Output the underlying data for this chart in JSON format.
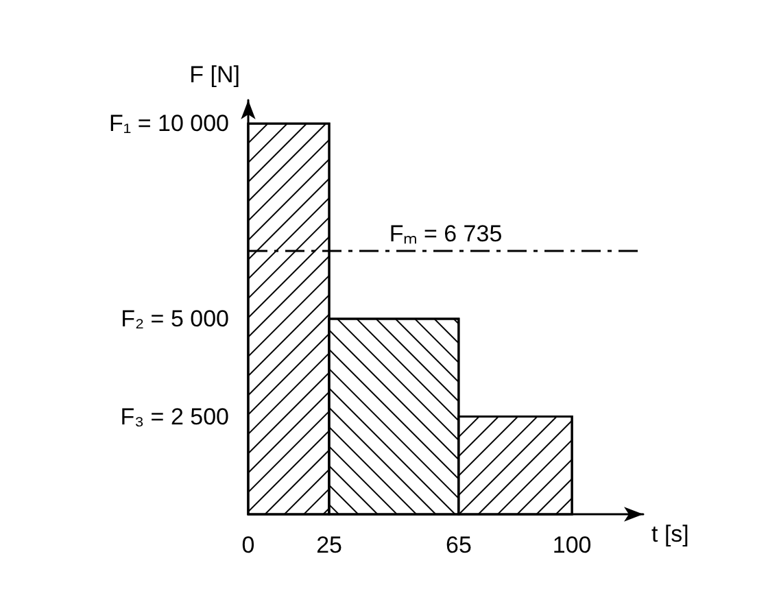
{
  "chart_data": {
    "type": "histogram",
    "xlabel": "t [s]",
    "ylabel": "F [N]",
    "bins": [
      0,
      25,
      65,
      100
    ],
    "values": [
      10000,
      5000,
      2500
    ],
    "color": "#000000",
    "xlim": [
      0,
      122
    ],
    "ylim": [
      0,
      10600
    ],
    "xticks": [
      0,
      25,
      65,
      100
    ],
    "yticks": [
      {
        "value": 2500,
        "label": "F₃ = 2 500"
      },
      {
        "value": 5000,
        "label": "F₂ = 5 000"
      },
      {
        "value": 10000,
        "label": "F₁ = 10 000"
      }
    ],
    "ref_lines": [
      {
        "axis": "y",
        "value": 6735,
        "label": "Fₘ = 6 735",
        "line_style": "dashed"
      }
    ]
  }
}
